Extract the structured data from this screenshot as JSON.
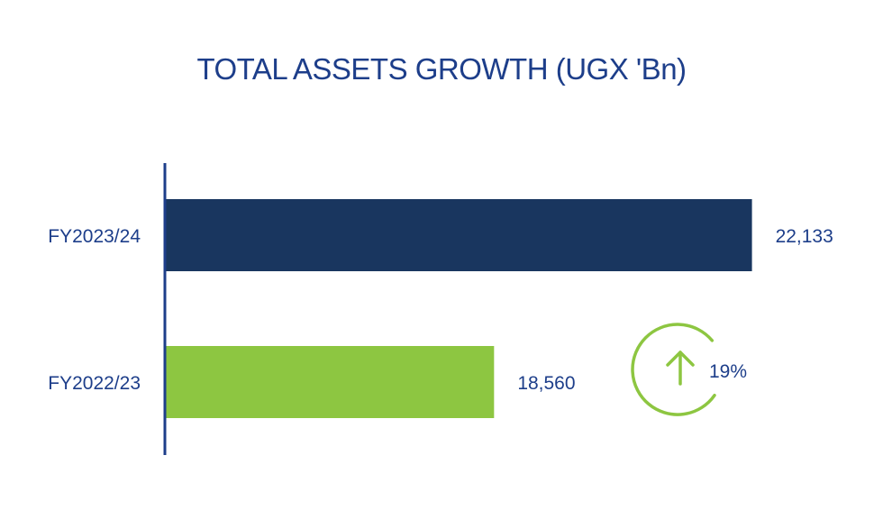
{
  "chart_data": {
    "type": "bar",
    "orientation": "horizontal",
    "title": "TOTAL ASSETS GROWTH (UGX 'Bn)",
    "categories": [
      "FY2023/24",
      "FY2022/23"
    ],
    "values": [
      22133,
      18560
    ],
    "value_labels": [
      "22,133",
      "18,560"
    ],
    "colors": [
      "#19365f",
      "#8dc641"
    ],
    "xlim": [
      14000,
      22700
    ],
    "growth": {
      "label": "19%",
      "icon": "arrow-up-circle-icon",
      "color": "#8dc641"
    },
    "axis_color": "#1d3e8a",
    "grid": false,
    "legend": "none"
  }
}
